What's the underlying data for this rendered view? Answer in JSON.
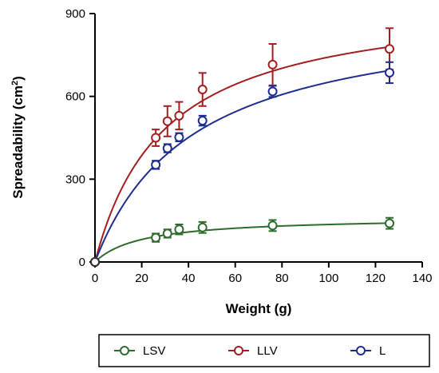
{
  "chart_data": {
    "type": "scatter",
    "xlabel": "Weight (g)",
    "ylabel_main": "Spreadability (cm",
    "ylabel_sup": "2",
    "ylabel_close": ")",
    "xlim": [
      0,
      140
    ],
    "ylim": [
      0,
      900
    ],
    "xticks": [
      0,
      20,
      40,
      60,
      80,
      100,
      120,
      140
    ],
    "yticks": [
      0,
      300,
      600,
      900
    ],
    "grid": false,
    "legend_position": "bottom, outside plot area",
    "series": [
      {
        "name": "LSV",
        "color": "#2e6b2e",
        "x": [
          0,
          26,
          31,
          36,
          46,
          76,
          126
        ],
        "y": [
          0,
          88,
          103,
          118,
          125,
          132,
          140
        ],
        "err": [
          0,
          15,
          15,
          18,
          20,
          20,
          20
        ],
        "fit": {
          "model": "hyperbolic",
          "ymax": 163,
          "k": 20
        }
      },
      {
        "name": "LLV",
        "color": "#a31f1f",
        "x": [
          0,
          26,
          31,
          36,
          46,
          76,
          126
        ],
        "y": [
          0,
          450,
          510,
          530,
          625,
          715,
          772
        ],
        "err": [
          0,
          30,
          55,
          50,
          60,
          75,
          75
        ],
        "fit": {
          "model": "hyperbolic",
          "ymax": 965,
          "k": 30
        }
      },
      {
        "name": "L",
        "color": "#1f2d8f",
        "x": [
          0,
          26,
          31,
          36,
          46,
          76,
          126
        ],
        "y": [
          0,
          352,
          412,
          452,
          512,
          618,
          686
        ],
        "err": [
          0,
          15,
          15,
          15,
          18,
          20,
          38
        ],
        "fit": {
          "model": "hyperbolic",
          "ymax": 925,
          "k": 42
        }
      }
    ]
  }
}
